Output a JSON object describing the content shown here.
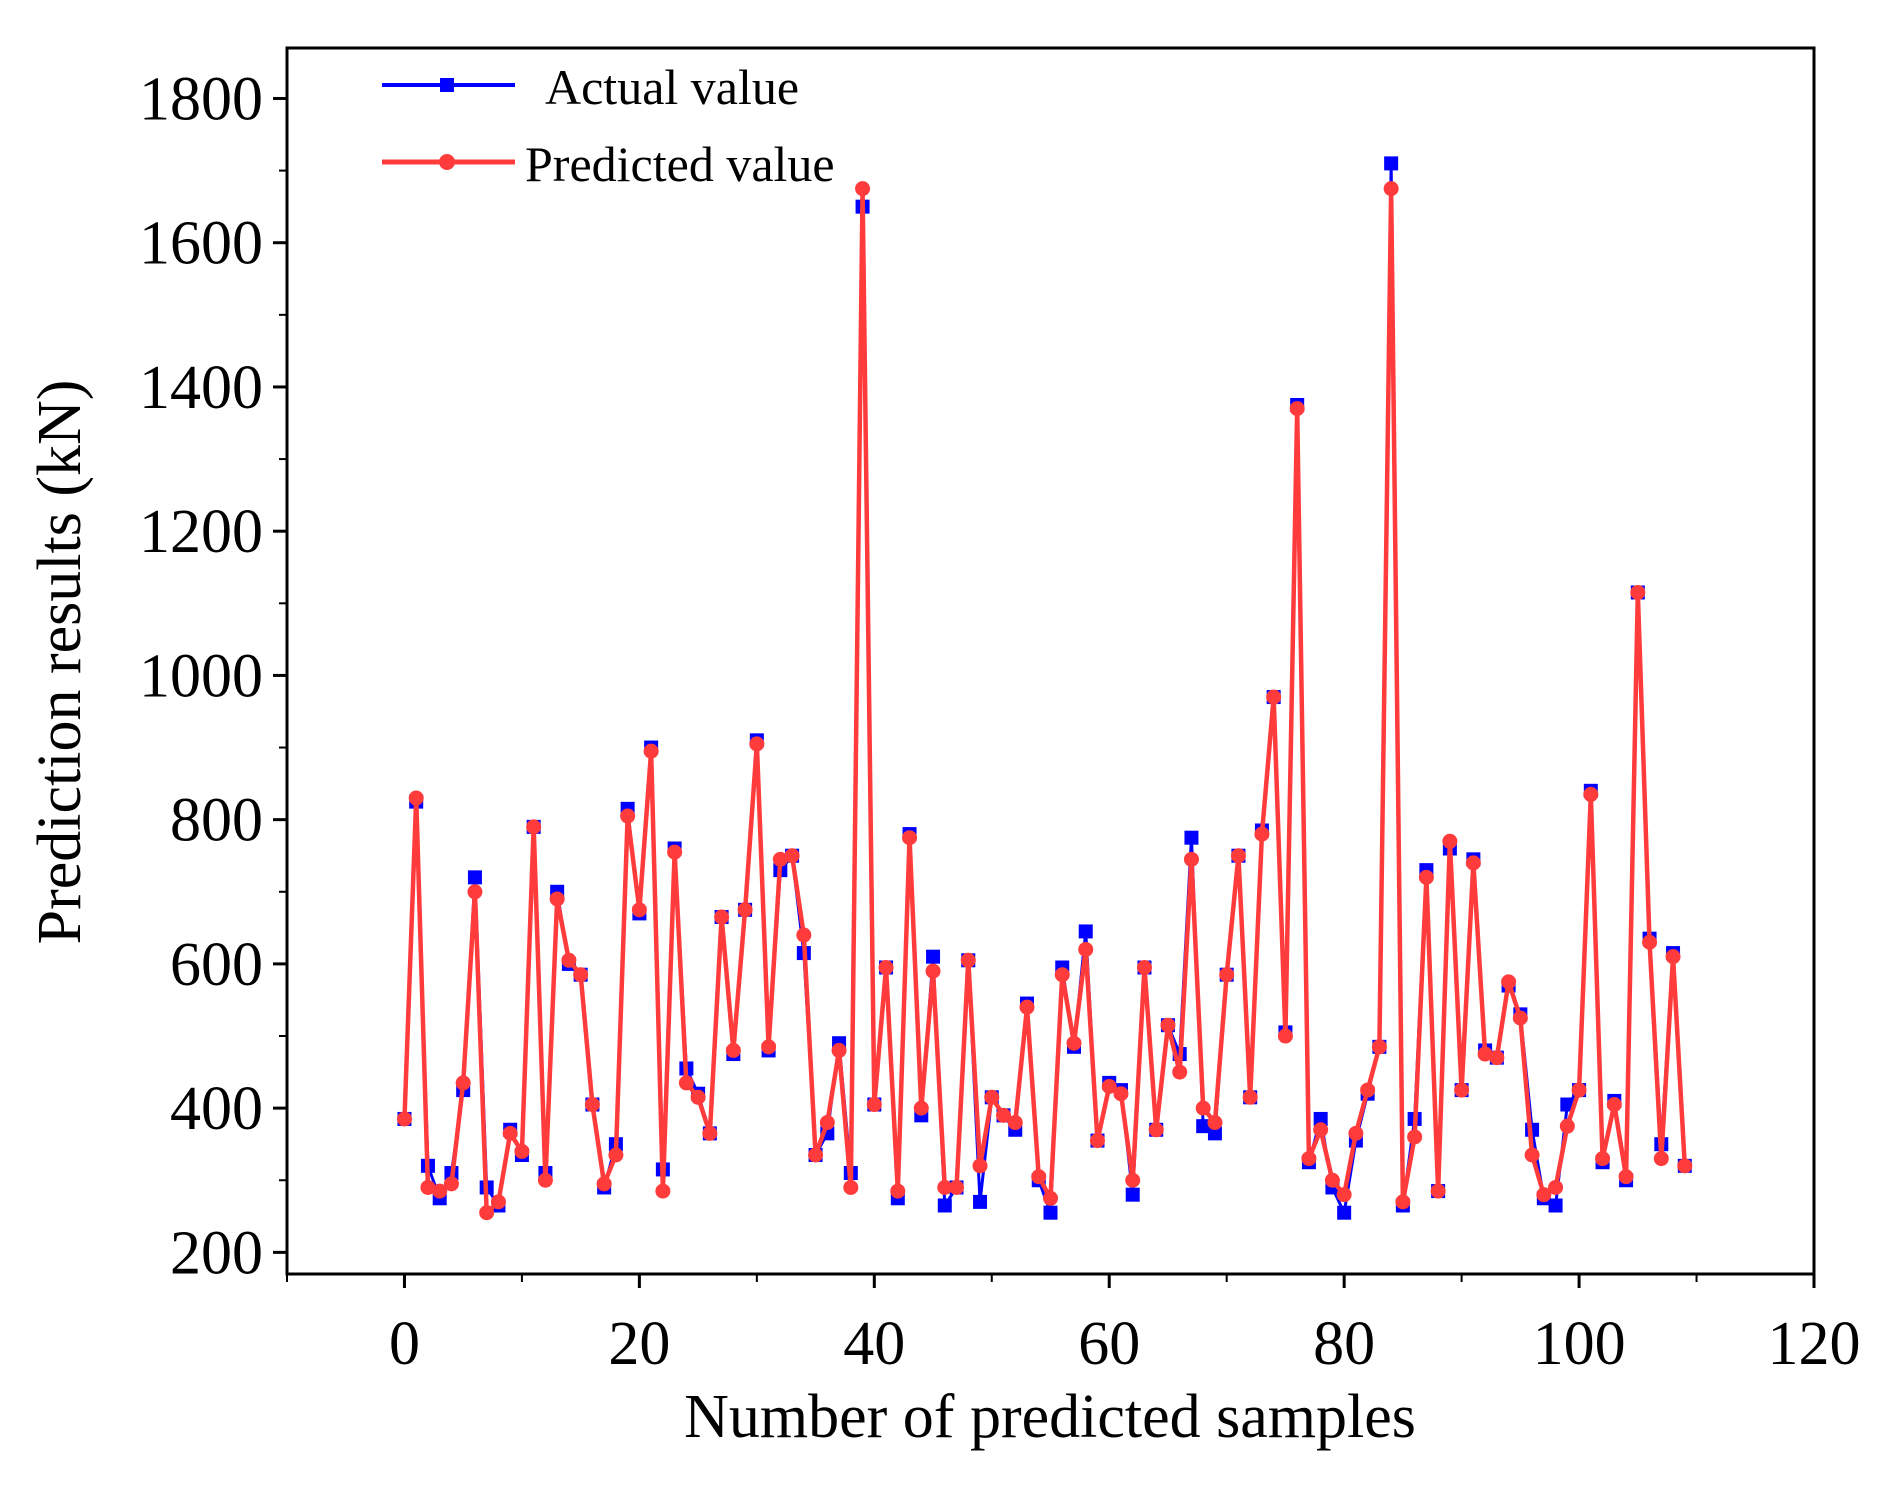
{
  "chart_data": {
    "type": "line",
    "title": "",
    "xlabel": "Number of predicted samples",
    "ylabel": "Prediction results (kN)",
    "xlim": [
      -10,
      120
    ],
    "ylim": [
      170,
      1870
    ],
    "x_ticks": [
      "0",
      "20",
      "40",
      "60",
      "80",
      "100",
      "120"
    ],
    "y_ticks": [
      "200",
      "400",
      "600",
      "800",
      "1000",
      "1200",
      "1400",
      "1600",
      "1800"
    ],
    "x_tick_values": [
      0,
      20,
      40,
      60,
      80,
      100,
      120
    ],
    "y_tick_values": [
      200,
      400,
      600,
      800,
      1000,
      1200,
      1400,
      1600,
      1800
    ],
    "grid": false,
    "legend_position": "top-left",
    "series": [
      {
        "name": "Actual value",
        "color": "#0000ff",
        "marker": "square",
        "values": [
          385,
          825,
          320,
          275,
          310,
          425,
          720,
          290,
          265,
          370,
          335,
          790,
          310,
          700,
          600,
          585,
          405,
          290,
          350,
          815,
          670,
          900,
          315,
          760,
          455,
          420,
          365,
          665,
          475,
          675,
          910,
          480,
          730,
          750,
          615,
          335,
          365,
          490,
          310,
          1650,
          405,
          595,
          275,
          780,
          390,
          610,
          265,
          290,
          605,
          270,
          415,
          390,
          370,
          545,
          300,
          255,
          595,
          485,
          645,
          355,
          435,
          425,
          280,
          595,
          370,
          515,
          475,
          775,
          375,
          365,
          585,
          750,
          415,
          785,
          970,
          505,
          1375,
          325,
          385,
          290,
          255,
          355,
          420,
          485,
          1710,
          265,
          385,
          730,
          285,
          760,
          425,
          745,
          480,
          470,
          570,
          530,
          370,
          275,
          265,
          405,
          425,
          840,
          325,
          410,
          300,
          1115,
          635,
          350,
          615,
          320
        ]
      },
      {
        "name": "Predicted value",
        "color": "#ff3b3b",
        "marker": "circle",
        "values": [
          385,
          830,
          290,
          285,
          295,
          435,
          700,
          255,
          270,
          365,
          340,
          790,
          300,
          690,
          605,
          585,
          405,
          295,
          335,
          805,
          675,
          895,
          285,
          755,
          435,
          415,
          365,
          665,
          480,
          675,
          905,
          485,
          745,
          750,
          640,
          335,
          380,
          480,
          290,
          1675,
          405,
          595,
          285,
          775,
          400,
          590,
          290,
          290,
          605,
          320,
          415,
          390,
          380,
          540,
          305,
          275,
          585,
          490,
          620,
          355,
          430,
          420,
          300,
          595,
          370,
          515,
          450,
          745,
          400,
          380,
          585,
          750,
          415,
          780,
          970,
          500,
          1370,
          330,
          370,
          300,
          280,
          365,
          425,
          485,
          1675,
          270,
          360,
          720,
          285,
          770,
          425,
          740,
          475,
          470,
          575,
          525,
          335,
          280,
          290,
          375,
          425,
          835,
          330,
          405,
          305,
          1115,
          630,
          330,
          610,
          320
        ]
      }
    ]
  }
}
